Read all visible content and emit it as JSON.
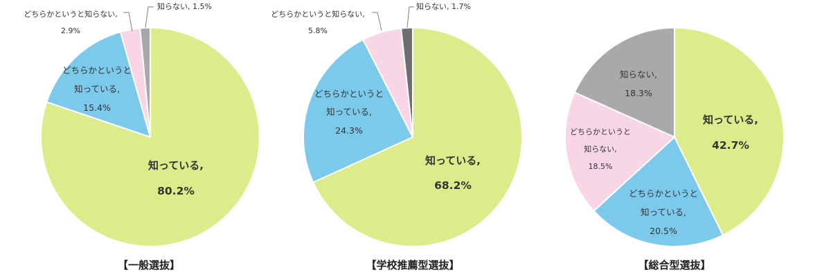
{
  "chart_data": [
    {
      "type": "pie",
      "title": "【一般選抜】",
      "slices": [
        {
          "label": "知っている,",
          "value": 80.2,
          "value_text": "80.2%",
          "color": "#dcec8a"
        },
        {
          "label": "どちらかというと知っている,",
          "label_lines": [
            "どちらかというと",
            "知っている,"
          ],
          "value": 15.4,
          "value_text": "15.4%",
          "color": "#7ccaeb"
        },
        {
          "label": "どちらかというと知らない,",
          "label_lines": [
            "どちらかというと知らない,"
          ],
          "value": 2.9,
          "value_text": "2.9%",
          "color": "#f8d6e6"
        },
        {
          "label": "知らない,",
          "value": 1.5,
          "value_text": "知らない, 1.5%",
          "color": "#a9a9a9"
        }
      ]
    },
    {
      "type": "pie",
      "title": "【学校推薦型選抜】",
      "slices": [
        {
          "label": "知っている,",
          "value": 68.2,
          "value_text": "68.2%",
          "color": "#dcec8a"
        },
        {
          "label": "どちらかというと知っている,",
          "label_lines": [
            "どちらかというと",
            "知っている,"
          ],
          "value": 24.3,
          "value_text": "24.3%",
          "color": "#7ccaeb"
        },
        {
          "label": "どちらかというと知らない,",
          "label_lines": [
            "どちらかというと知らない,"
          ],
          "value": 5.8,
          "value_text": "5.8%",
          "color": "#f8d6e6"
        },
        {
          "label": "知らない,",
          "value": 1.7,
          "value_text": "知らない, 1.7%",
          "color": "#6e6e6e"
        }
      ]
    },
    {
      "type": "pie",
      "title": "【総合型選抜】",
      "slices": [
        {
          "label": "知っている,",
          "value": 42.7,
          "value_text": "42.7%",
          "color": "#dcec8a"
        },
        {
          "label": "どちらかというと知っている,",
          "label_lines": [
            "どちらかというと",
            "知っている,"
          ],
          "value": 20.5,
          "value_text": "20.5%",
          "color": "#7ccaeb"
        },
        {
          "label": "どちらかというと知らない,",
          "label_lines": [
            "どちらかというと",
            "知らない,"
          ],
          "value": 18.5,
          "value_text": "18.5%",
          "color": "#f8d6e6"
        },
        {
          "label": "知らない,",
          "value": 18.3,
          "value_text": "18.3%",
          "color": "#a9a9a9"
        }
      ]
    }
  ]
}
